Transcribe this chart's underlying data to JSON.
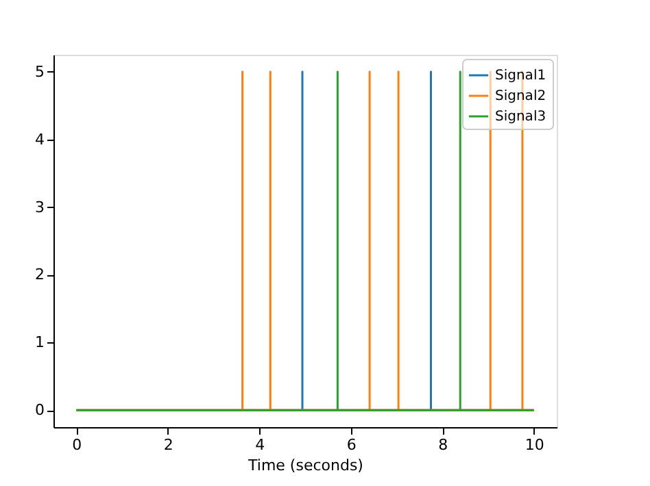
{
  "chart_data": {
    "type": "line",
    "xlabel": "Time (seconds)",
    "xlim": [
      -0.5,
      10.5
    ],
    "xticks": [
      0,
      2,
      4,
      6,
      8,
      10
    ],
    "ylim": [
      -0.25,
      5.25
    ],
    "yticks": [
      0,
      1,
      2,
      3,
      4,
      5
    ],
    "grid": false,
    "legend": "top right",
    "marker": "none",
    "line_style": "solid",
    "series": [
      {
        "name": "Signal1",
        "color": "#1f77b4",
        "x": [
          0,
          4.94,
          4.94,
          4.94,
          7.75,
          7.75,
          7.75,
          10
        ],
        "values": [
          0,
          0,
          5,
          0,
          0,
          5,
          0,
          0
        ]
      },
      {
        "name": "Signal2",
        "color": "#ff7f0e",
        "x": [
          0,
          3.63,
          3.63,
          3.63,
          4.24,
          4.24,
          4.24,
          6.41,
          6.41,
          6.41,
          7.04,
          7.04,
          7.04,
          9.05,
          9.05,
          9.05,
          9.75,
          9.75,
          9.75,
          10
        ],
        "values": [
          0,
          0,
          5,
          0,
          0,
          5,
          0,
          0,
          5,
          0,
          0,
          5,
          0,
          0,
          5,
          0,
          0,
          5,
          0,
          0
        ]
      },
      {
        "name": "Signal3",
        "color": "#2ca02c",
        "x": [
          0,
          5.71,
          5.71,
          5.71,
          8.39,
          8.39,
          8.39,
          10
        ],
        "values": [
          0,
          0,
          5,
          0,
          0,
          5,
          0,
          0
        ]
      }
    ]
  }
}
